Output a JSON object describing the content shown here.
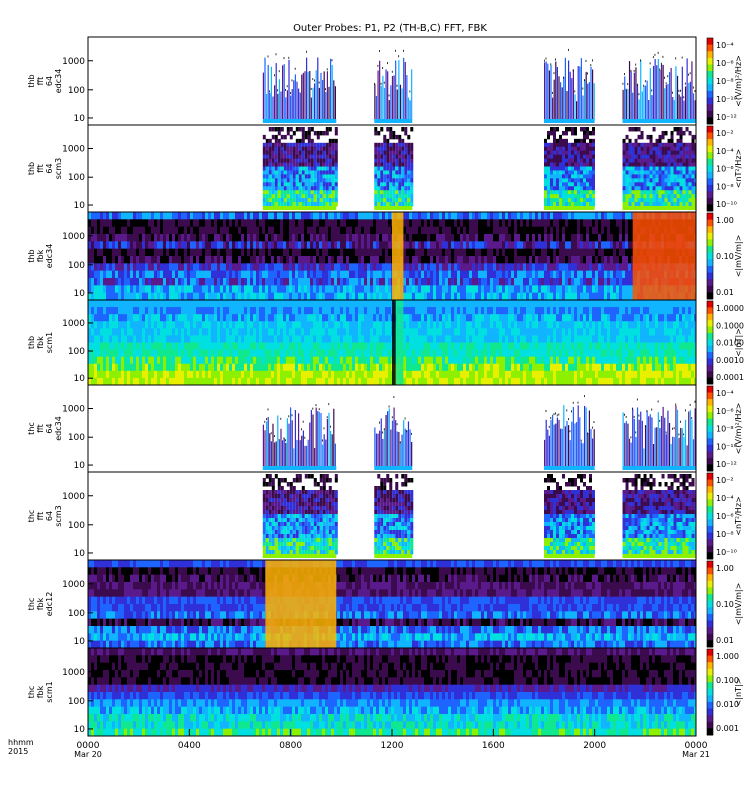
{
  "chart_data": {
    "type": "heatmap",
    "title": "Outer Probes: P1, P2 (TH-B,C) FFT, FBK",
    "x_axis": {
      "corner_label": [
        "hhmm",
        "2015"
      ],
      "range_hours": [
        0,
        24
      ],
      "ticks": [
        {
          "hour": 0,
          "label": "0000",
          "sub": "Mar 20"
        },
        {
          "hour": 4,
          "label": "0400",
          "sub": ""
        },
        {
          "hour": 8,
          "label": "0800",
          "sub": ""
        },
        {
          "hour": 12,
          "label": "1200",
          "sub": ""
        },
        {
          "hour": 16,
          "label": "1600",
          "sub": ""
        },
        {
          "hour": 20,
          "label": "2000",
          "sub": ""
        },
        {
          "hour": 24,
          "label": "0000",
          "sub": "Mar 21"
        }
      ]
    },
    "colormap": [
      "#000000",
      "#3b0b4e",
      "#5a1a8c",
      "#3030d8",
      "#1e64ff",
      "#10b4ff",
      "#00e0e0",
      "#10e890",
      "#8cf000",
      "#e8f000",
      "#ffb400",
      "#ff5000",
      "#e00000"
    ],
    "panels": [
      {
        "ylabel": [
          "thb",
          "fft",
          "64",
          "edc34"
        ],
        "yticks": [
          "1000",
          "100",
          "10"
        ],
        "cbar_ticks": [
          "10⁻⁴",
          "10⁻⁶",
          "10⁻⁸",
          "10⁻¹⁰",
          "10⁻¹²"
        ],
        "cbar_label": "<(V/m)²/Hz>",
        "mode": "burst",
        "sparse": true,
        "strip": "#10b4ff",
        "intervals": [
          [
            6.9,
            9.8
          ],
          [
            11.3,
            12.8
          ],
          [
            18.0,
            20.0
          ],
          [
            21.1,
            24.0
          ]
        ],
        "events": []
      },
      {
        "ylabel": [
          "thb",
          "fft",
          "64",
          "scm3"
        ],
        "yticks": [
          "1000",
          "100",
          "10"
        ],
        "cbar_ticks": [
          "10⁻²",
          "10⁻⁴",
          "10⁻⁶",
          "10⁻⁸",
          "10⁻¹⁰"
        ],
        "cbar_label": "<nT²/Hz>",
        "mode": "burst",
        "sparse": false,
        "strip": "#8cf000",
        "intervals": [
          [
            6.9,
            9.8
          ],
          [
            11.3,
            12.8
          ],
          [
            18.0,
            20.0
          ],
          [
            21.1,
            24.0
          ]
        ],
        "events": []
      },
      {
        "ylabel": [
          "thb",
          "fbk",
          "edc34"
        ],
        "yticks": [
          "1000",
          "100",
          "10"
        ],
        "cbar_ticks": [
          "1.00",
          "0.10",
          "0.01"
        ],
        "cbar_label": "<|mV/m|>",
        "mode": "continuous",
        "style": "dark",
        "events": [
          [
            12.0,
            12.45,
            "#ffb400"
          ],
          [
            21.5,
            24.0,
            "#ff5000"
          ]
        ]
      },
      {
        "ylabel": [
          "thb",
          "fbk",
          "scm1"
        ],
        "yticks": [
          "1000",
          "100",
          "10"
        ],
        "cbar_ticks": [
          "1.0000",
          "0.1000",
          "0.0100",
          "0.0010",
          "0.0001"
        ],
        "cbar_label": "<|nT|>",
        "mode": "continuous",
        "style": "bright",
        "events": [
          [
            12.0,
            12.15,
            "#000000"
          ],
          [
            12.15,
            12.45,
            "#10e890"
          ]
        ]
      },
      {
        "ylabel": [
          "thc",
          "fft",
          "64",
          "edc34"
        ],
        "yticks": [
          "1000",
          "100",
          "10"
        ],
        "cbar_ticks": [
          "10⁻⁴",
          "10⁻⁶",
          "10⁻⁸",
          "10⁻¹⁰",
          "10⁻¹²"
        ],
        "cbar_label": "<(V/m)²/Hz>",
        "mode": "burst",
        "sparse": true,
        "strip": "#10b4ff",
        "intervals": [
          [
            6.9,
            9.8
          ],
          [
            11.3,
            12.8
          ],
          [
            18.0,
            20.0
          ],
          [
            21.1,
            24.0
          ]
        ],
        "events": []
      },
      {
        "ylabel": [
          "thc",
          "fft",
          "64",
          "scm3"
        ],
        "yticks": [
          "1000",
          "100",
          "10"
        ],
        "cbar_ticks": [
          "10⁻²",
          "10⁻⁴",
          "10⁻⁶",
          "10⁻⁸",
          "10⁻¹⁰"
        ],
        "cbar_label": "<nT²/Hz>",
        "mode": "burst",
        "sparse": false,
        "strip": "#8cf000",
        "intervals": [
          [
            6.9,
            9.8
          ],
          [
            11.3,
            12.8
          ],
          [
            18.0,
            20.0
          ],
          [
            21.1,
            24.0
          ]
        ],
        "events": []
      },
      {
        "ylabel": [
          "thc",
          "fbk",
          "edc12"
        ],
        "yticks": [
          "1000",
          "100",
          "10"
        ],
        "cbar_ticks": [
          "1.00",
          "0.10",
          "0.01"
        ],
        "cbar_label": "<|mV/m|>",
        "mode": "continuous",
        "style": "purple",
        "events": [
          [
            7.0,
            9.8,
            "#ffb400"
          ]
        ]
      },
      {
        "ylabel": [
          "thc",
          "fbk",
          "scm1"
        ],
        "yticks": [
          "1000",
          "100",
          "10"
        ],
        "cbar_ticks": [
          "1.000",
          "0.100",
          "0.010",
          "0.001"
        ],
        "cbar_label": "<|nT|>",
        "mode": "continuous",
        "style": "darkblue",
        "events": []
      }
    ]
  }
}
